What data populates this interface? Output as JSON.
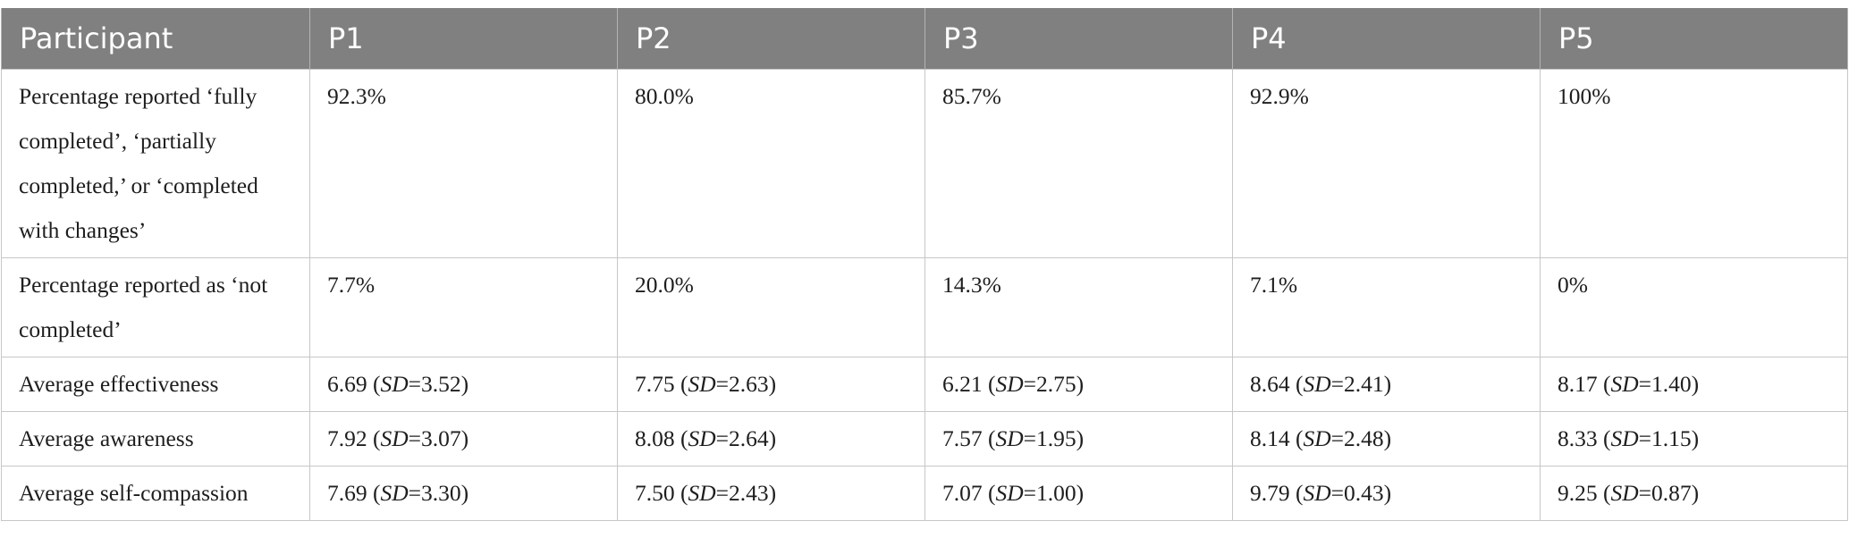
{
  "table": {
    "headers": [
      "Participant",
      "P1",
      "P2",
      "P3",
      "P4",
      "P5"
    ],
    "rows": [
      {
        "label": "Percentage reported ‘fully completed’, ‘partially completed,’ or ‘completed with changes’",
        "cells": [
          {
            "value": "92.3%"
          },
          {
            "value": "80.0%"
          },
          {
            "value": "85.7%"
          },
          {
            "value": "92.9%"
          },
          {
            "value": "100%"
          }
        ]
      },
      {
        "label": "Percentage reported as ‘not completed’",
        "cells": [
          {
            "value": "7.7%"
          },
          {
            "value": "20.0%"
          },
          {
            "value": "14.3%"
          },
          {
            "value": "7.1%"
          },
          {
            "value": "0%"
          }
        ]
      },
      {
        "label": "Average effectiveness",
        "cells": [
          {
            "mean": "6.69",
            "sd_label": "SD",
            "sd": "=3.52)"
          },
          {
            "mean": "7.75",
            "sd_label": "SD",
            "sd": "=2.63)"
          },
          {
            "mean": "6.21",
            "sd_label": "SD",
            "sd": "=2.75)"
          },
          {
            "mean": "8.64",
            "sd_label": "SD",
            "sd": "=2.41)"
          },
          {
            "mean": "8.17",
            "sd_label": "SD",
            "sd": "=1.40)"
          }
        ]
      },
      {
        "label": "Average awareness",
        "cells": [
          {
            "mean": "7.92",
            "sd_label": "SD",
            "sd": "=3.07)"
          },
          {
            "mean": "8.08",
            "sd_label": "SD",
            "sd": "=2.64)"
          },
          {
            "mean": "7.57",
            "sd_label": "SD",
            "sd": "=1.95)"
          },
          {
            "mean": "8.14",
            "sd_label": "SD",
            "sd": "=2.48)"
          },
          {
            "mean": "8.33",
            "sd_label": "SD",
            "sd": "=1.15)"
          }
        ]
      },
      {
        "label": "Average self-compassion",
        "cells": [
          {
            "mean": "7.69",
            "sd_label": "SD",
            "sd": "=3.30)"
          },
          {
            "mean": "7.50",
            "sd_label": "SD",
            "sd": "=2.43)"
          },
          {
            "mean": "7.07",
            "sd_label": "SD",
            "sd": "=1.00)"
          },
          {
            "mean": "9.79",
            "sd_label": "SD",
            "sd": "=0.43)"
          },
          {
            "mean": "9.25",
            "sd_label": "SD",
            "sd": "=0.87)"
          }
        ]
      }
    ]
  }
}
